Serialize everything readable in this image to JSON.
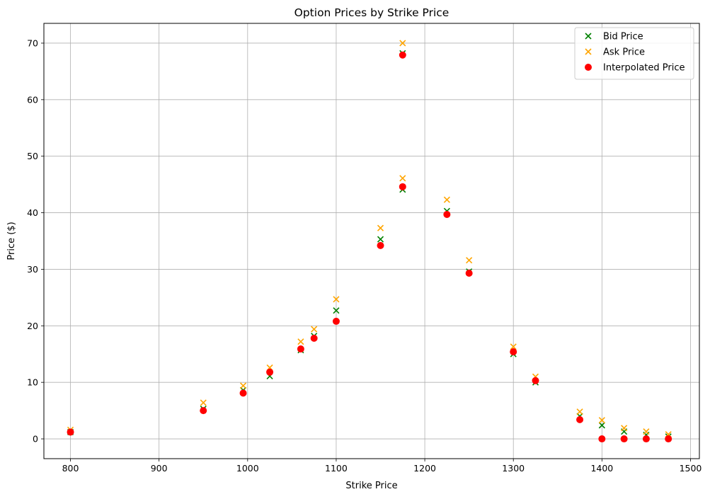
{
  "chart_data": {
    "type": "scatter",
    "title": "Option Prices by Strike Price",
    "xlabel": "Strike Price",
    "ylabel": "Price ($)",
    "xlim": [
      770,
      1510
    ],
    "ylim": [
      -3.5,
      73.5
    ],
    "xticks": [
      800,
      900,
      1000,
      1100,
      1200,
      1300,
      1400,
      1500
    ],
    "yticks": [
      0,
      10,
      20,
      30,
      40,
      50,
      60,
      70
    ],
    "grid": true,
    "legend_position": "top-right",
    "series": [
      {
        "name": "Bid Price",
        "marker": "x",
        "color": "#008000",
        "points": [
          [
            800,
            1.2
          ],
          [
            950,
            5.3
          ],
          [
            995,
            8.6
          ],
          [
            1025,
            11.1
          ],
          [
            1060,
            15.7
          ],
          [
            1075,
            18.2
          ],
          [
            1100,
            22.7
          ],
          [
            1150,
            35.3
          ],
          [
            1175,
            44.1
          ],
          [
            1175,
            68.2
          ],
          [
            1225,
            40.3
          ],
          [
            1250,
            29.6
          ],
          [
            1300,
            15.0
          ],
          [
            1325,
            10.0
          ],
          [
            1375,
            4.0
          ],
          [
            1400,
            2.4
          ],
          [
            1425,
            1.3
          ],
          [
            1450,
            0.7
          ],
          [
            1475,
            0.4
          ]
        ]
      },
      {
        "name": "Ask Price",
        "marker": "x",
        "color": "#ffa500",
        "points": [
          [
            800,
            1.6
          ],
          [
            950,
            6.4
          ],
          [
            995,
            9.4
          ],
          [
            1025,
            12.6
          ],
          [
            1060,
            17.2
          ],
          [
            1075,
            19.4
          ],
          [
            1100,
            24.7
          ],
          [
            1150,
            37.3
          ],
          [
            1175,
            46.1
          ],
          [
            1175,
            70.0
          ],
          [
            1225,
            42.3
          ],
          [
            1250,
            31.6
          ],
          [
            1300,
            16.3
          ],
          [
            1325,
            11.0
          ],
          [
            1375,
            4.8
          ],
          [
            1400,
            3.3
          ],
          [
            1425,
            1.9
          ],
          [
            1450,
            1.3
          ],
          [
            1475,
            0.8
          ]
        ]
      },
      {
        "name": "Interpolated Price",
        "marker": "o",
        "color": "#ff0000",
        "points": [
          [
            800,
            1.2
          ],
          [
            950,
            5.0
          ],
          [
            995,
            8.1
          ],
          [
            1025,
            11.8
          ],
          [
            1060,
            15.9
          ],
          [
            1075,
            17.8
          ],
          [
            1100,
            20.8
          ],
          [
            1150,
            34.2
          ],
          [
            1175,
            44.6
          ],
          [
            1175,
            67.9
          ],
          [
            1225,
            39.7
          ],
          [
            1250,
            29.3
          ],
          [
            1300,
            15.4
          ],
          [
            1325,
            10.3
          ],
          [
            1375,
            3.4
          ],
          [
            1400,
            0.0
          ],
          [
            1425,
            0.0
          ],
          [
            1450,
            0.0
          ],
          [
            1475,
            0.0
          ]
        ]
      }
    ]
  }
}
